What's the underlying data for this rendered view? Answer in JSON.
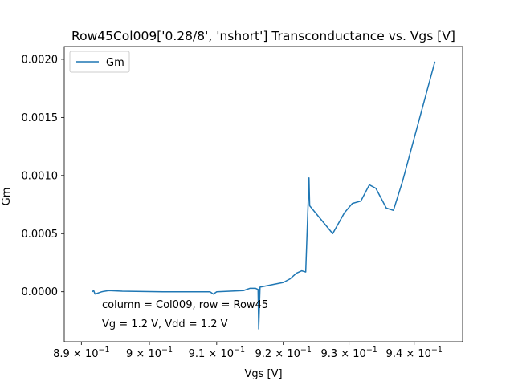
{
  "chart_data": {
    "type": "line",
    "title": "Row45Col009['0.28/8', 'nshort'] Transconductance vs. Vgs [V]",
    "xlabel": "Vgs [V]",
    "ylabel": "Gm",
    "x_scale": "log",
    "xlim": [
      0.8875,
      0.9475
    ],
    "ylim": [
      -0.00043,
      0.00211
    ],
    "grid": false,
    "legend_placement": "top-left",
    "x_ticks": [
      {
        "value": 0.89,
        "base": "8.9",
        "exp": "−1"
      },
      {
        "value": 0.9,
        "base": "9",
        "exp": "−1"
      },
      {
        "value": 0.91,
        "base": "9.1",
        "exp": "−1"
      },
      {
        "value": 0.92,
        "base": "9.2",
        "exp": "−1"
      },
      {
        "value": 0.93,
        "base": "9.3",
        "exp": "−1"
      },
      {
        "value": 0.94,
        "base": "9.4",
        "exp": "−1"
      }
    ],
    "x_tick_multiplier": "× 10",
    "y_ticks": [
      {
        "value": 0.0,
        "label": "0.0000"
      },
      {
        "value": 0.0005,
        "label": "0.0005"
      },
      {
        "value": 0.001,
        "label": "0.0010"
      },
      {
        "value": 0.0015,
        "label": "0.0015"
      },
      {
        "value": 0.002,
        "label": "0.0020"
      }
    ],
    "series": [
      {
        "name": "Gm",
        "color": "#1f77b4",
        "x": [
          0.8916,
          0.8918,
          0.892,
          0.893,
          0.894,
          0.896,
          0.902,
          0.909,
          0.9095,
          0.91,
          0.912,
          0.914,
          0.915,
          0.9158,
          0.9162,
          0.9163,
          0.9165,
          0.92,
          0.921,
          0.922,
          0.9228,
          0.9234,
          0.9239,
          0.924,
          0.9275,
          0.9293,
          0.9305,
          0.9318,
          0.9331,
          0.9341,
          0.9357,
          0.9368,
          0.9382,
          0.9432
        ],
        "y": [
          0.0,
          1e-05,
          -2e-05,
          0.0,
          1e-05,
          5e-06,
          0.0,
          0.0,
          -2e-05,
          0.0,
          5e-06,
          1e-05,
          3e-05,
          3e-05,
          2e-05,
          -0.00032,
          4e-05,
          8e-05,
          0.00011,
          0.00016,
          0.00018,
          0.00017,
          0.00098,
          0.00074,
          0.0005,
          0.00068,
          0.00076,
          0.00078,
          0.00092,
          0.00089,
          0.00072,
          0.0007,
          0.00095,
          0.00198
        ]
      }
    ],
    "annotations": [
      "column = Col009, row = Row45",
      "Vg = 1.2 V, Vdd = 1.2 V"
    ]
  }
}
